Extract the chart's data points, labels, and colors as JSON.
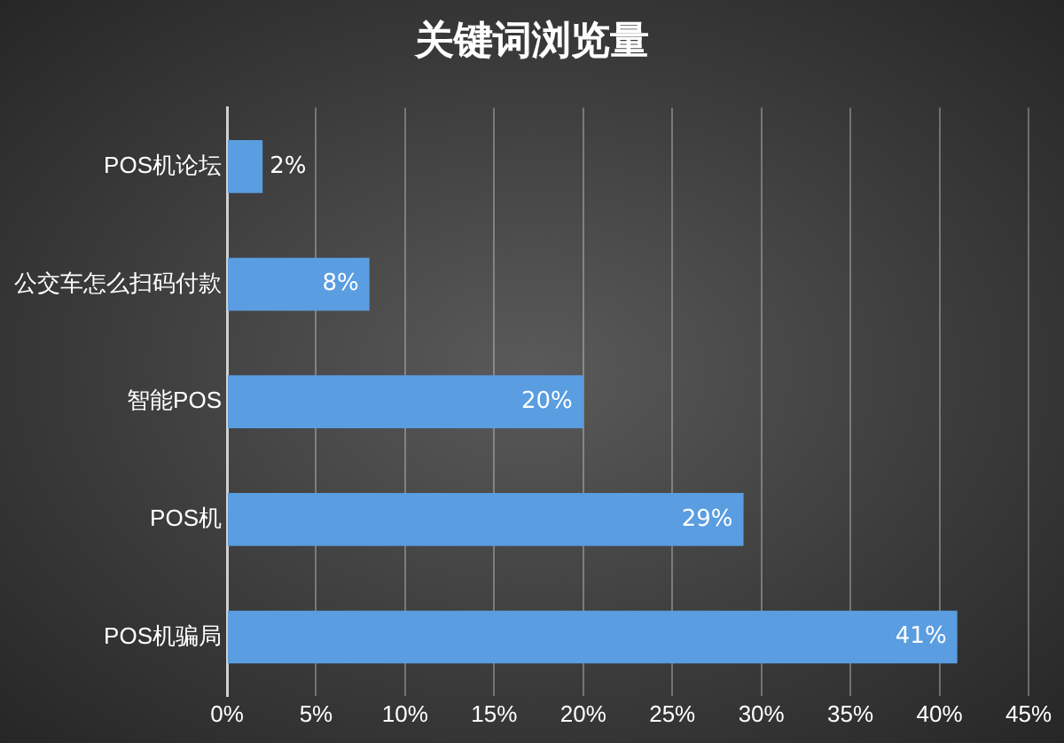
{
  "chart_data": {
    "type": "bar",
    "orientation": "horizontal",
    "title": "关键词浏览量",
    "categories": [
      "POS机论坛",
      "公交车怎么扫码付款",
      "智能POS",
      "POS机",
      "POS机骗局"
    ],
    "values": [
      2,
      8,
      20,
      29,
      41
    ],
    "color": "#5a9de0",
    "value_labels": [
      "2%",
      "8%",
      "20%",
      "29%",
      "41%"
    ],
    "xlim": [
      0,
      45
    ],
    "xticks": [
      {
        "value": 0,
        "label": "0%"
      },
      {
        "value": 5,
        "label": "5%"
      },
      {
        "value": 10,
        "label": "10%"
      },
      {
        "value": 15,
        "label": "15%"
      },
      {
        "value": 20,
        "label": "20%"
      },
      {
        "value": 25,
        "label": "25%"
      },
      {
        "value": 30,
        "label": "30%"
      },
      {
        "value": 35,
        "label": "35%"
      },
      {
        "value": 40,
        "label": "40%"
      },
      {
        "value": 45,
        "label": "45%"
      }
    ],
    "grid": "x",
    "legend": false
  }
}
